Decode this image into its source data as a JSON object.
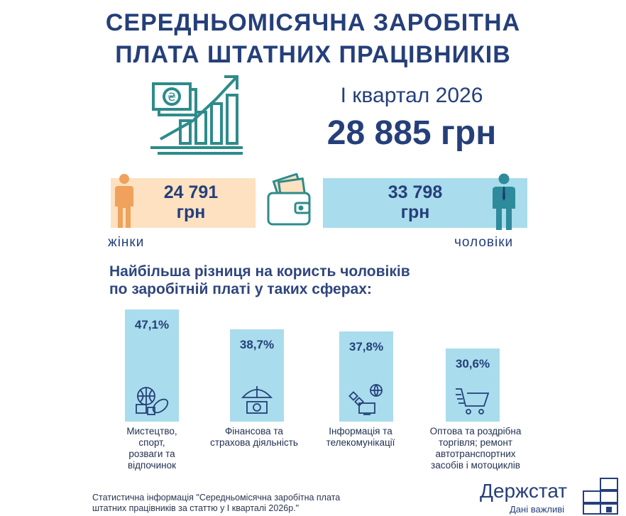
{
  "header": {
    "title_line1": "СЕРЕДНЬОМІСЯЧНА ЗАРОБІТНА",
    "title_line2": "ПЛАТА ШТАТНИХ ПРАЦІВНИКІВ"
  },
  "summary": {
    "period": "І квартал 2026",
    "average": "28 885 грн",
    "currency_symbol": "₴"
  },
  "gender": {
    "women_value": "24 791",
    "women_unit": "грн",
    "women_label": "жінки",
    "men_value": "33 798",
    "men_unit": "грн",
    "men_label": "чоловіки"
  },
  "subheading": {
    "line1": "Найбільша різниця на користь чоловіків",
    "line2": "по заробітній платі у таких сферах:"
  },
  "chart_data": {
    "type": "bar",
    "categories": [
      "Мистецтво, спорт, розваги та відпочинок",
      "Фінансова та страхова діяльність",
      "Інформація та телекомунікації",
      "Оптова та роздрібна торгівля; ремонт автотранспортних засобів і мотоциклів"
    ],
    "values": [
      47.1,
      38.7,
      37.8,
      30.6
    ],
    "value_labels": [
      "47,1%",
      "38,7%",
      "37,8%",
      "30,6%"
    ],
    "category_lines": [
      [
        "Мистецтво,",
        "спорт,",
        "розваги та",
        "відпочинок"
      ],
      [
        "Фінансова та",
        "страхова діяльність"
      ],
      [
        "Інформація та",
        "телекомунікації"
      ],
      [
        "Оптова та роздрібна",
        "торгівля; ремонт",
        "автотранспортних",
        "засобів і мотоциклів"
      ]
    ],
    "icons": [
      "sports-balls-icon",
      "finance-umbrella-icon",
      "telecom-satellite-icon",
      "shopping-cart-icon"
    ]
  },
  "footer": {
    "note_line1": "Статистична інформація \"Середньомісячна заробітна плата",
    "note_line2": "штатних працівників за статтю у І кварталі 2026р.\"",
    "brand": "Держстат",
    "tagline": "Дані важливі"
  },
  "colors": {
    "navy": "#253f7a",
    "teal": "#2e8b8b",
    "light_blue": "#a9dcec",
    "peach": "#fde1c1",
    "orange": "#f0a15c"
  }
}
